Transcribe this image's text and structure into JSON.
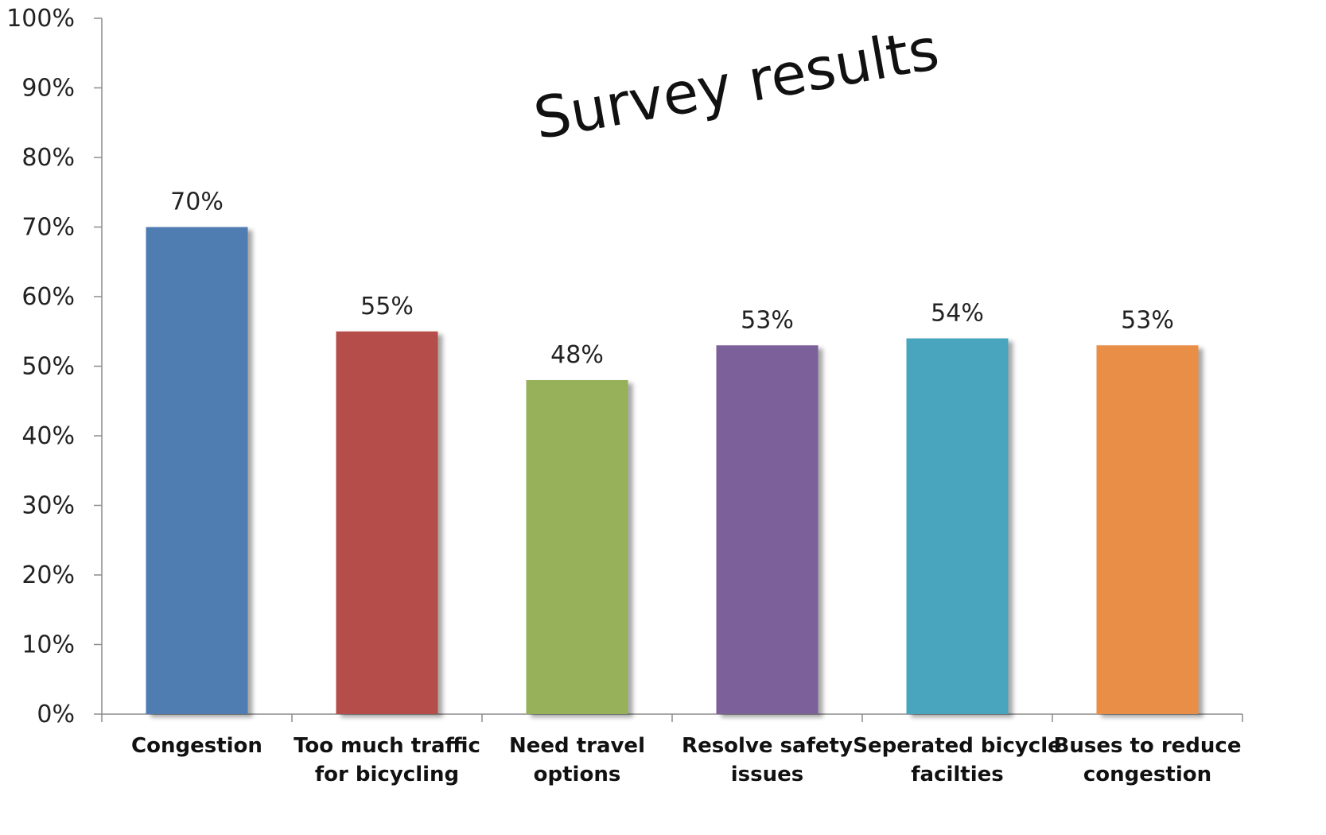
{
  "chart_data": {
    "type": "bar",
    "title": "Survey results",
    "categories": [
      [
        "Congestion"
      ],
      [
        "Too much traffic",
        "for bicycling"
      ],
      [
        "Need travel",
        "options"
      ],
      [
        "Resolve safety",
        "issues"
      ],
      [
        "Seperated bicycle",
        "facilties"
      ],
      [
        "Buses to reduce",
        "congestion"
      ]
    ],
    "values": [
      70,
      55,
      48,
      53,
      54,
      53
    ],
    "value_labels": [
      "70%",
      "55%",
      "48%",
      "53%",
      "54%",
      "53%"
    ],
    "colors": [
      "#4f7bb1",
      "#b54d4b",
      "#97b05a",
      "#7c619a",
      "#4aa5bd",
      "#e88e47"
    ],
    "ylim": [
      0,
      100
    ],
    "yticks": [
      "0%",
      "10%",
      "20%",
      "30%",
      "40%",
      "50%",
      "60%",
      "70%",
      "80%",
      "90%",
      "100%"
    ],
    "xlabel": "",
    "ylabel": "",
    "grid": false,
    "legend": "none"
  }
}
